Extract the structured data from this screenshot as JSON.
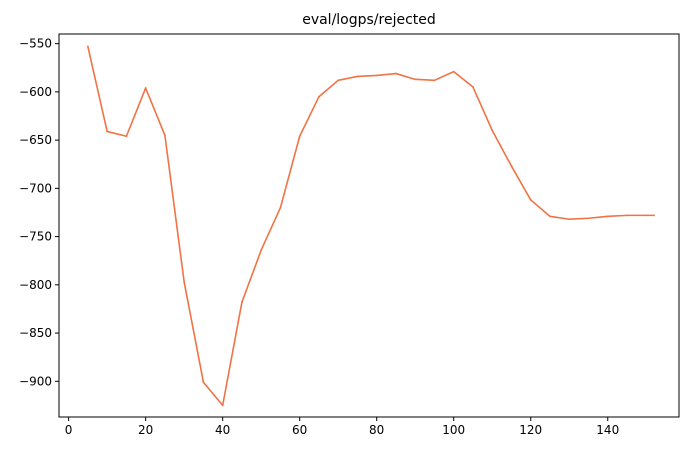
{
  "chart_data": {
    "type": "line",
    "title": "eval/logps/rejected",
    "xlabel": "",
    "ylabel": "",
    "xlim": [
      -2.5,
      158.5
    ],
    "ylim": [
      -937,
      -540
    ],
    "xticks": [
      0,
      20,
      40,
      60,
      80,
      100,
      120,
      140
    ],
    "yticks": [
      -550,
      -600,
      -650,
      -700,
      -750,
      -800,
      -850,
      -900
    ],
    "grid": false,
    "legend": "none",
    "series": [
      {
        "color": "#f07345",
        "x": [
          5,
          10,
          15,
          20,
          25,
          30,
          35,
          40,
          45,
          50,
          55,
          60,
          65,
          70,
          75,
          80,
          85,
          90,
          95,
          100,
          105,
          110,
          115,
          120,
          125,
          130,
          135,
          140,
          145,
          150,
          152
        ],
        "y": [
          -553,
          -641,
          -646,
          -596,
          -645,
          -797,
          -901,
          -925,
          -818,
          -764,
          -720,
          -646,
          -605,
          -588,
          -584,
          -583,
          -581,
          -587,
          -588,
          -579,
          -595,
          -640,
          -677,
          -712,
          -729,
          -732,
          -731,
          -729,
          -728,
          -728,
          -728
        ]
      }
    ]
  }
}
